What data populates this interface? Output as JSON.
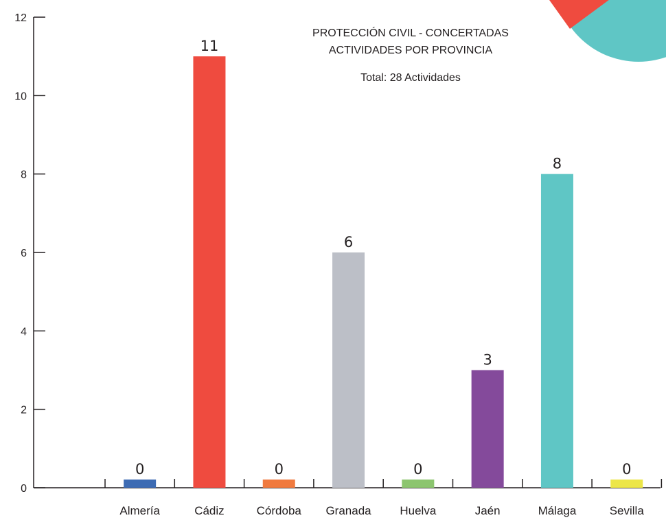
{
  "chart_data": {
    "type": "bar",
    "title_lines": [
      "PROTECCIÓN CIVIL - CONCERTADAS",
      "ACTIVIDADES POR PROVINCIA"
    ],
    "subtitle": "Total: 28 Actividades",
    "categories": [
      "Almería",
      "Cádiz",
      "Córdoba",
      "Granada",
      "Huelva",
      "Jaén",
      "Málaga",
      "Sevilla"
    ],
    "values": [
      0,
      11,
      0,
      6,
      0,
      3,
      8,
      0
    ],
    "data_labels": [
      "0",
      "11",
      "0",
      "6",
      "0",
      "3",
      "8",
      "0"
    ],
    "bar_colors": [
      "#3d6bb3",
      "#ef4b3f",
      "#f07a3e",
      "#bcbfc7",
      "#8cc56f",
      "#844a9b",
      "#5fc6c5",
      "#ece648"
    ],
    "yticks": [
      "0",
      "2",
      "4",
      "6",
      "8",
      "10",
      "12"
    ],
    "ylim": [
      0,
      12
    ],
    "xlabel": "",
    "ylabel": "",
    "grid": false
  },
  "decoration": {
    "corner_colors": [
      "#ef4b3f",
      "#5fc6c5"
    ]
  }
}
